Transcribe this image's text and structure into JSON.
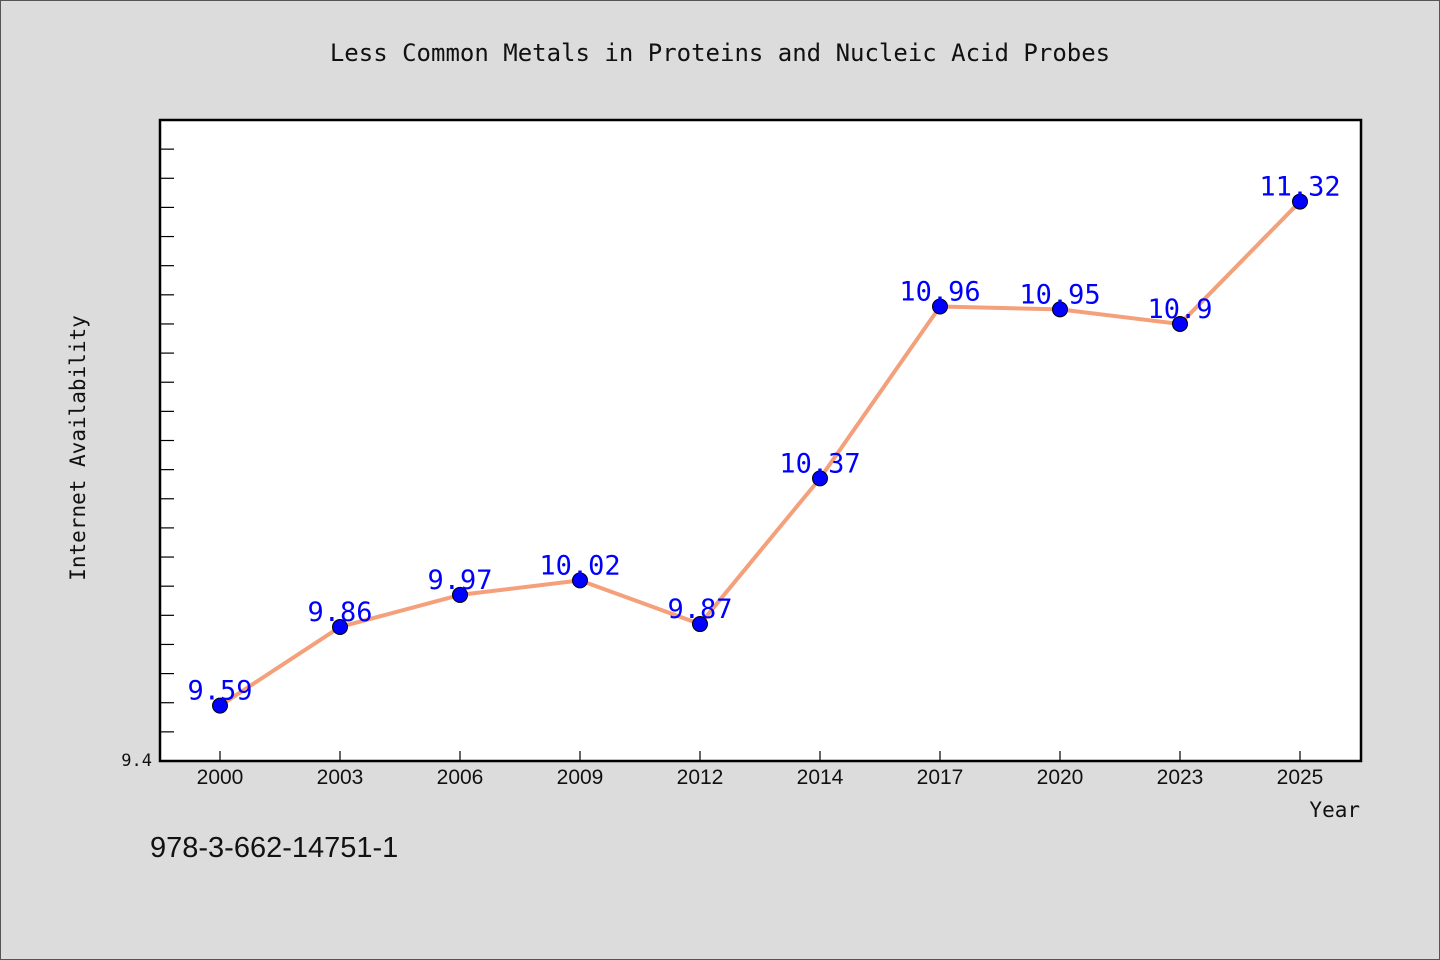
{
  "chart_data": {
    "type": "line",
    "title": "Less Common Metals in Proteins and Nucleic Acid Probes",
    "xlabel": "Year",
    "ylabel": "Internet Availability",
    "categories": [
      "2000",
      "2003",
      "2006",
      "2009",
      "2012",
      "2014",
      "2017",
      "2020",
      "2023",
      "2025"
    ],
    "series": [
      {
        "values": [
          9.59,
          9.86,
          9.97,
          10.02,
          9.87,
          10.37,
          10.96,
          10.95,
          10.9,
          11.32
        ],
        "data_labels": [
          "9.59",
          "9.86",
          "9.97",
          "10.02",
          "9.87",
          "10.37",
          "10.96",
          "10.95",
          "10.9",
          "11.32"
        ],
        "line_color": "#f4a07a",
        "marker_color": "#0000ff"
      }
    ],
    "ylim": [
      9.4,
      11.6
    ],
    "y_tick_labels": [
      "9.4"
    ],
    "y_minor_tick_step": 0.1,
    "grid": false,
    "legend": "none"
  },
  "footer": {
    "isbn": "978-3-662-14751-1"
  }
}
